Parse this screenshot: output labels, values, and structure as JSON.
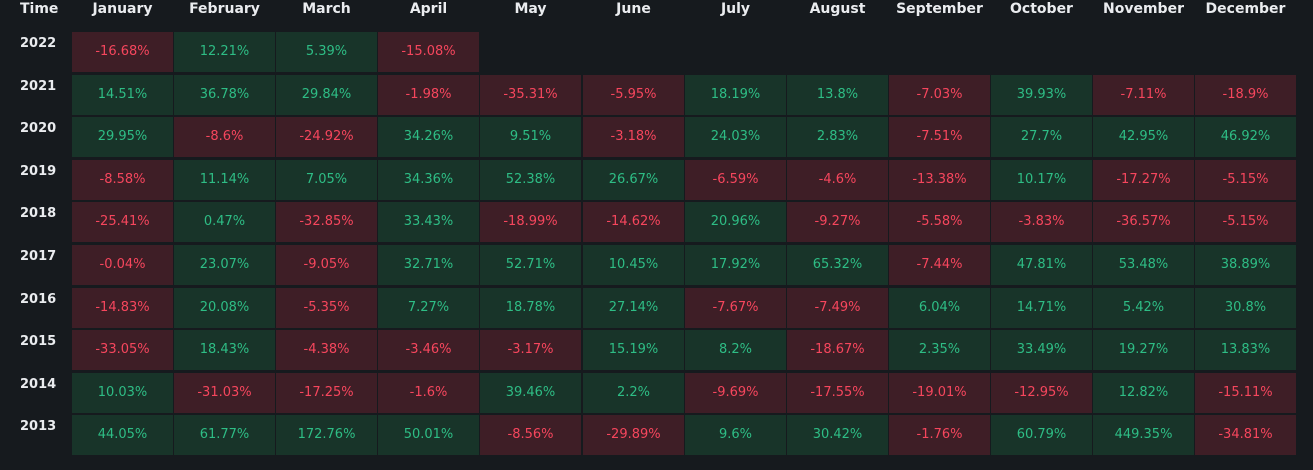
{
  "table": {
    "time_header": "Time",
    "months": [
      "January",
      "February",
      "March",
      "April",
      "May",
      "June",
      "July",
      "August",
      "September",
      "October",
      "November",
      "December"
    ],
    "rows": [
      {
        "year": "2022",
        "values": [
          "-16.68%",
          "12.21%",
          "5.39%",
          "-15.08%",
          "",
          "",
          "",
          "",
          "",
          "",
          "",
          ""
        ]
      },
      {
        "year": "2021",
        "values": [
          "14.51%",
          "36.78%",
          "29.84%",
          "-1.98%",
          "-35.31%",
          "-5.95%",
          "18.19%",
          "13.8%",
          "-7.03%",
          "39.93%",
          "-7.11%",
          "-18.9%"
        ]
      },
      {
        "year": "2020",
        "values": [
          "29.95%",
          "-8.6%",
          "-24.92%",
          "34.26%",
          "9.51%",
          "-3.18%",
          "24.03%",
          "2.83%",
          "-7.51%",
          "27.7%",
          "42.95%",
          "46.92%"
        ]
      },
      {
        "year": "2019",
        "values": [
          "-8.58%",
          "11.14%",
          "7.05%",
          "34.36%",
          "52.38%",
          "26.67%",
          "-6.59%",
          "-4.6%",
          "-13.38%",
          "10.17%",
          "-17.27%",
          "-5.15%"
        ]
      },
      {
        "year": "2018",
        "values": [
          "-25.41%",
          "0.47%",
          "-32.85%",
          "33.43%",
          "-18.99%",
          "-14.62%",
          "20.96%",
          "-9.27%",
          "-5.58%",
          "-3.83%",
          "-36.57%",
          "-5.15%"
        ]
      },
      {
        "year": "2017",
        "values": [
          "-0.04%",
          "23.07%",
          "-9.05%",
          "32.71%",
          "52.71%",
          "10.45%",
          "17.92%",
          "65.32%",
          "-7.44%",
          "47.81%",
          "53.48%",
          "38.89%"
        ]
      },
      {
        "year": "2016",
        "values": [
          "-14.83%",
          "20.08%",
          "-5.35%",
          "7.27%",
          "18.78%",
          "27.14%",
          "-7.67%",
          "-7.49%",
          "6.04%",
          "14.71%",
          "5.42%",
          "30.8%"
        ]
      },
      {
        "year": "2015",
        "values": [
          "-33.05%",
          "18.43%",
          "-4.38%",
          "-3.46%",
          "-3.17%",
          "15.19%",
          "8.2%",
          "-18.67%",
          "2.35%",
          "33.49%",
          "19.27%",
          "13.83%"
        ]
      },
      {
        "year": "2014",
        "values": [
          "10.03%",
          "-31.03%",
          "-17.25%",
          "-1.6%",
          "39.46%",
          "2.2%",
          "-9.69%",
          "-17.55%",
          "-19.01%",
          "-12.95%",
          "12.82%",
          "-15.11%"
        ]
      },
      {
        "year": "2013",
        "values": [
          "44.05%",
          "61.77%",
          "172.76%",
          "50.01%",
          "-8.56%",
          "-29.89%",
          "9.6%",
          "30.42%",
          "-1.76%",
          "60.79%",
          "449.35%",
          "-34.81%"
        ]
      }
    ]
  },
  "colors": {
    "background": "#161a1e",
    "positive_bg": "#183429",
    "positive_text": "#2ebd85",
    "negative_bg": "#3e1e26",
    "negative_text": "#f6465d",
    "header_text": "#eaecef"
  }
}
